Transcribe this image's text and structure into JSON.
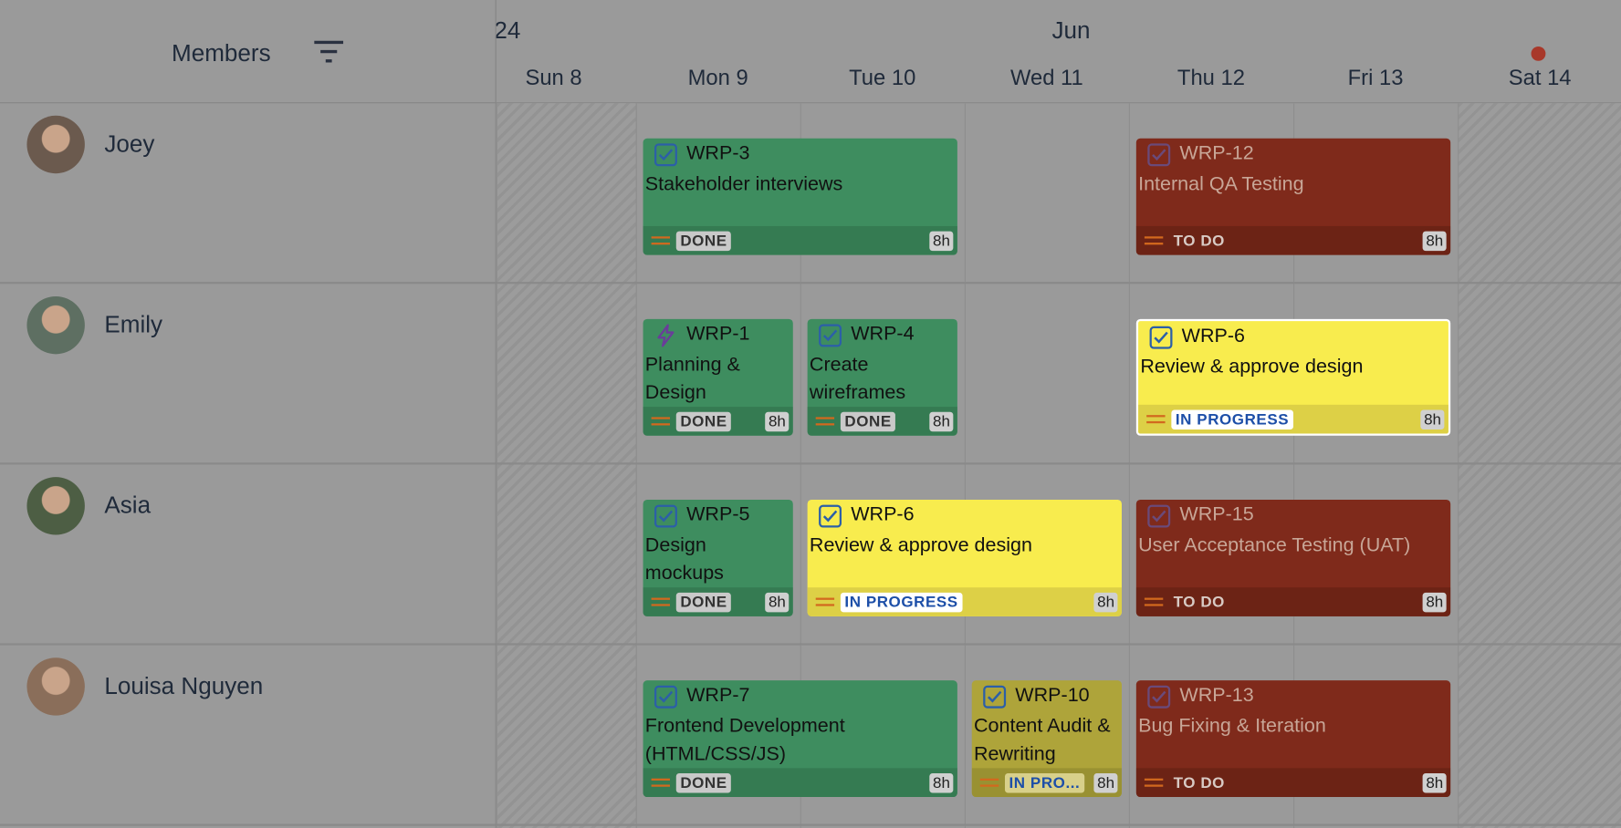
{
  "header": {
    "members_label": "Members",
    "year_fragment": "24",
    "month": "Jun"
  },
  "days": [
    "Sun 8",
    "Mon 9",
    "Tue 10",
    "Wed 11",
    "Thu 12",
    "Fri 13",
    "Sat 14"
  ],
  "members": [
    {
      "name": "Joey",
      "tasks": [
        {
          "key": "WRP-3",
          "title": "Stakeholder interviews",
          "status": "DONE",
          "estimate": "8h"
        },
        {
          "key": "WRP-12",
          "title": "Internal QA Testing",
          "status": "TO DO",
          "estimate": "8h"
        }
      ]
    },
    {
      "name": "Emily",
      "tasks": [
        {
          "key": "WRP-1",
          "title": "Planning & Design",
          "status": "DONE",
          "estimate": "8h"
        },
        {
          "key": "WRP-4",
          "title": "Create wireframes",
          "status": "DONE",
          "estimate": "8h"
        },
        {
          "key": "WRP-6",
          "title": "Review & approve design",
          "status": "IN PROGRESS",
          "estimate": "8h"
        }
      ]
    },
    {
      "name": "Asia",
      "tasks": [
        {
          "key": "WRP-5",
          "title": "Design mockups",
          "status": "DONE",
          "estimate": "8h"
        },
        {
          "key": "WRP-6",
          "title": "Review & approve design",
          "status": "IN PROGRESS",
          "estimate": "8h"
        },
        {
          "key": "WRP-15",
          "title": "User Acceptance Testing (UAT)",
          "status": "TO DO",
          "estimate": "8h"
        }
      ]
    },
    {
      "name": "Louisa Nguyen",
      "tasks": [
        {
          "key": "WRP-7",
          "title": "Frontend Development (HTML/CSS/JS)",
          "status": "DONE",
          "estimate": "8h"
        },
        {
          "key": "WRP-10",
          "title": "Content Audit & Rewriting",
          "status": "IN PRO...",
          "estimate": "8h"
        },
        {
          "key": "WRP-13",
          "title": "Bug Fixing & Iteration",
          "status": "TO DO",
          "estimate": "8h"
        }
      ]
    }
  ]
}
